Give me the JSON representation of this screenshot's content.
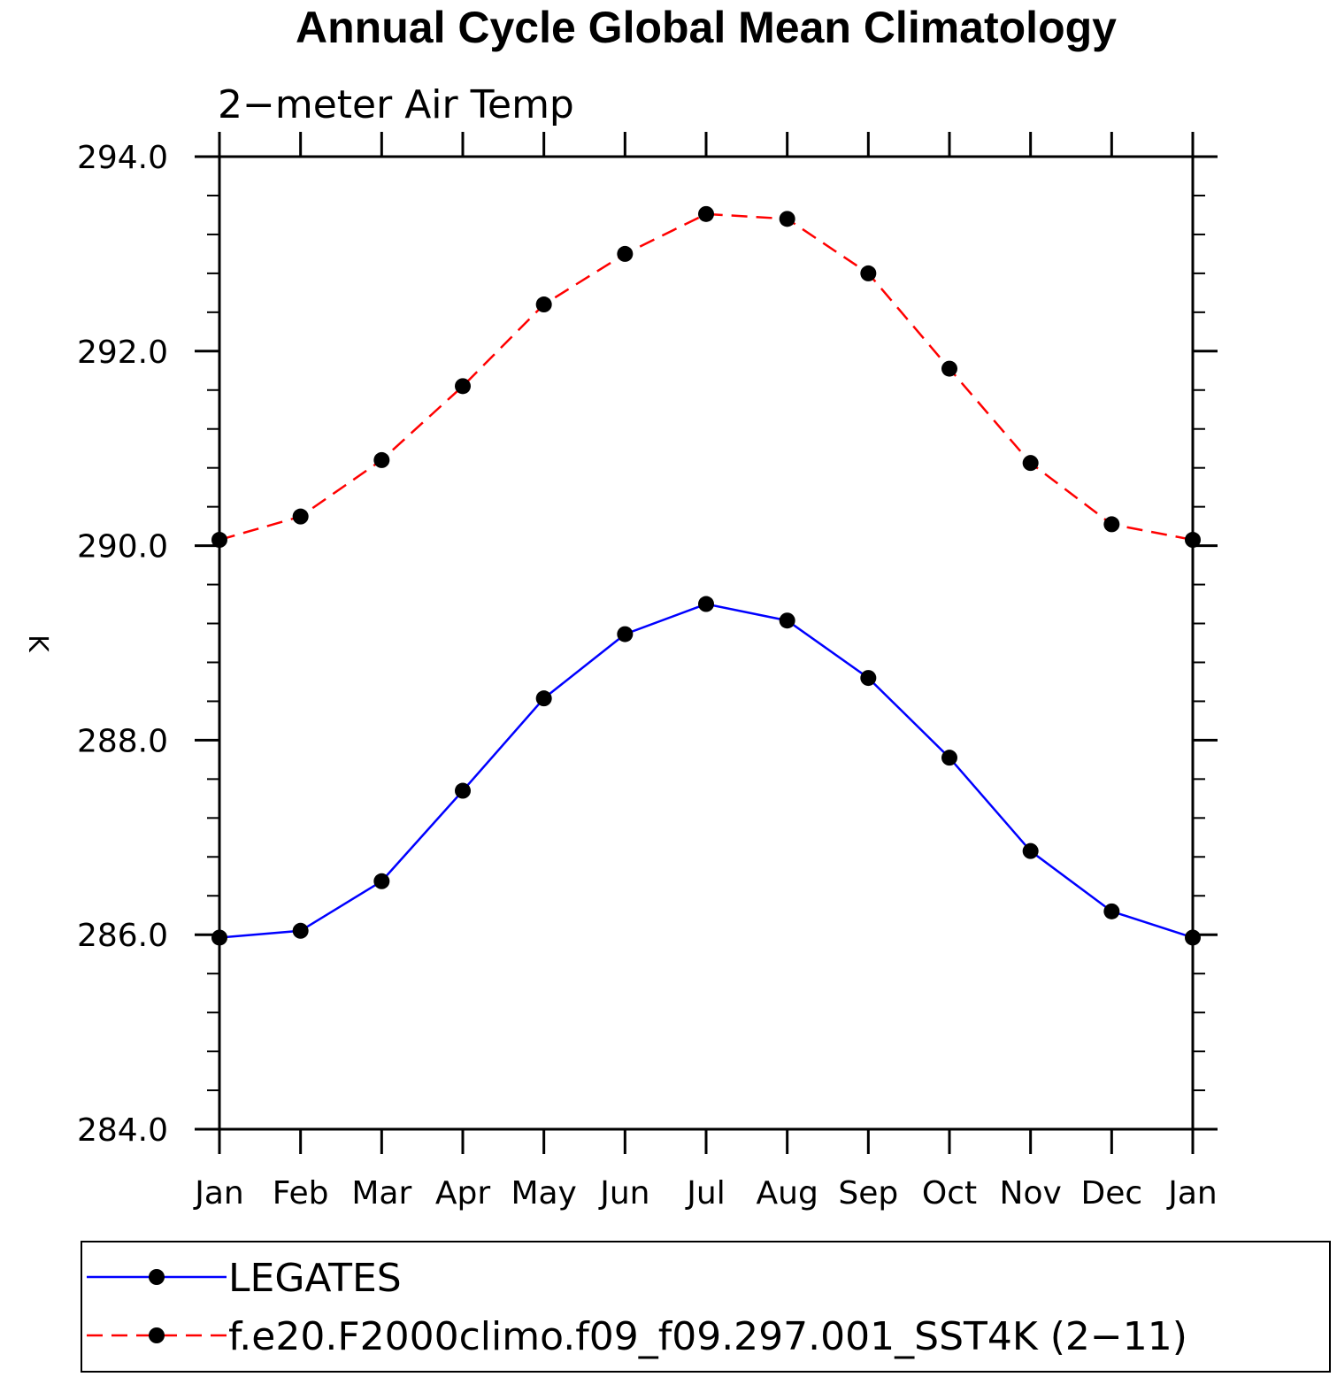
{
  "chart_data": {
    "type": "line",
    "title": "Annual Cycle Global Mean Climatology",
    "subtitle": "2−meter Air Temp",
    "ylabel": "K",
    "xlabel": "",
    "categories": [
      "Jan",
      "Feb",
      "Mar",
      "Apr",
      "May",
      "Jun",
      "Jul",
      "Aug",
      "Sep",
      "Oct",
      "Nov",
      "Dec",
      "Jan"
    ],
    "ylim": [
      284.0,
      294.0
    ],
    "yticks": [
      "284.0",
      "286.0",
      "288.0",
      "290.0",
      "292.0",
      "294.0"
    ],
    "grid": false,
    "legend_position": "bottom",
    "series": [
      {
        "name": "LEGATES",
        "color": "#0000ff",
        "line_style": "solid",
        "marker": "filled-circle",
        "values": [
          285.97,
          286.04,
          286.55,
          287.48,
          288.43,
          289.09,
          289.4,
          289.23,
          288.64,
          287.82,
          286.86,
          286.24,
          285.97
        ]
      },
      {
        "name": "f.e20.F2000climo.f09_f09.297.001_SST4K (2−11)",
        "color": "#ff0000",
        "line_style": "dashed",
        "marker": "filled-circle",
        "values": [
          290.06,
          290.3,
          290.88,
          291.64,
          292.48,
          293.0,
          293.41,
          293.36,
          292.8,
          291.82,
          290.85,
          290.22,
          290.06
        ]
      }
    ]
  }
}
